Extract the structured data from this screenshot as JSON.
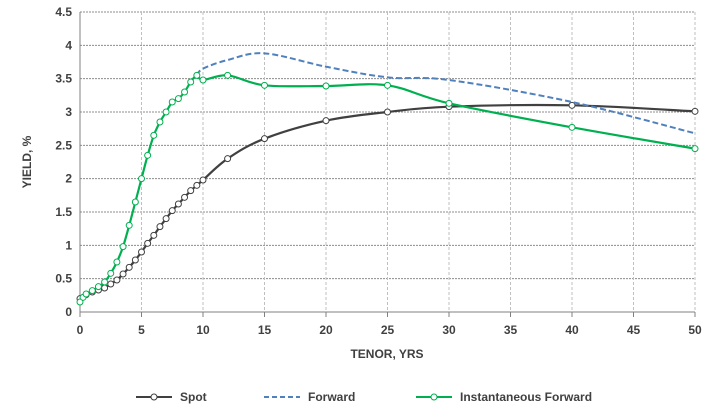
{
  "chart_data": {
    "type": "line",
    "title": "",
    "xlabel": "TENOR, YRS",
    "ylabel": "YIELD, %",
    "xlim": [
      0,
      50
    ],
    "ylim": [
      0,
      4.5
    ],
    "xticks": [
      0,
      5,
      10,
      15,
      20,
      25,
      30,
      35,
      40,
      45,
      50
    ],
    "yticks": [
      0,
      0.5,
      1,
      1.5,
      2,
      2.5,
      3,
      3.5,
      4,
      4.5
    ],
    "ytick_labels": [
      "0",
      "0.5",
      "1",
      "1.5",
      "2",
      "2.5",
      "3",
      "3.5",
      "4",
      "4.5"
    ],
    "grid": true,
    "legend_position": "bottom",
    "series": [
      {
        "name": "Spot",
        "color": "#404040",
        "dashed": false,
        "markers": true,
        "x": [
          0,
          0.5,
          1,
          1.5,
          2,
          2.5,
          3,
          3.5,
          4,
          4.5,
          5,
          5.5,
          6,
          6.5,
          7,
          7.5,
          8,
          8.5,
          9,
          9.5,
          10,
          12,
          15,
          20,
          25,
          30,
          40,
          50
        ],
        "y": [
          0.2,
          0.26,
          0.3,
          0.33,
          0.36,
          0.42,
          0.48,
          0.57,
          0.67,
          0.78,
          0.9,
          1.03,
          1.15,
          1.28,
          1.4,
          1.52,
          1.62,
          1.72,
          1.82,
          1.9,
          1.98,
          2.3,
          2.6,
          2.87,
          3.0,
          3.08,
          3.1,
          3.01
        ]
      },
      {
        "name": "Forward",
        "color": "#4f81bd",
        "dashed": true,
        "markers": false,
        "x": [
          9.5,
          10,
          12,
          15,
          20,
          25,
          30,
          40,
          50
        ],
        "y": [
          3.55,
          3.65,
          3.78,
          3.88,
          3.68,
          3.52,
          3.48,
          3.15,
          2.68
        ]
      },
      {
        "name": "Instantaneous Forward",
        "color": "#00b050",
        "dashed": false,
        "markers": true,
        "x": [
          0,
          0.25,
          0.5,
          1,
          1.5,
          2,
          2.5,
          3,
          3.5,
          4,
          4.5,
          5,
          5.5,
          6,
          6.5,
          7,
          7.5,
          8,
          8.5,
          9,
          9.5,
          10,
          12,
          15,
          20,
          25,
          30,
          40,
          50
        ],
        "y": [
          0.15,
          0.22,
          0.27,
          0.32,
          0.38,
          0.45,
          0.58,
          0.75,
          0.98,
          1.3,
          1.65,
          2.0,
          2.35,
          2.65,
          2.85,
          3.0,
          3.15,
          3.2,
          3.3,
          3.45,
          3.55,
          3.48,
          3.55,
          3.4,
          3.39,
          3.4,
          3.13,
          2.77,
          2.45
        ]
      }
    ]
  }
}
